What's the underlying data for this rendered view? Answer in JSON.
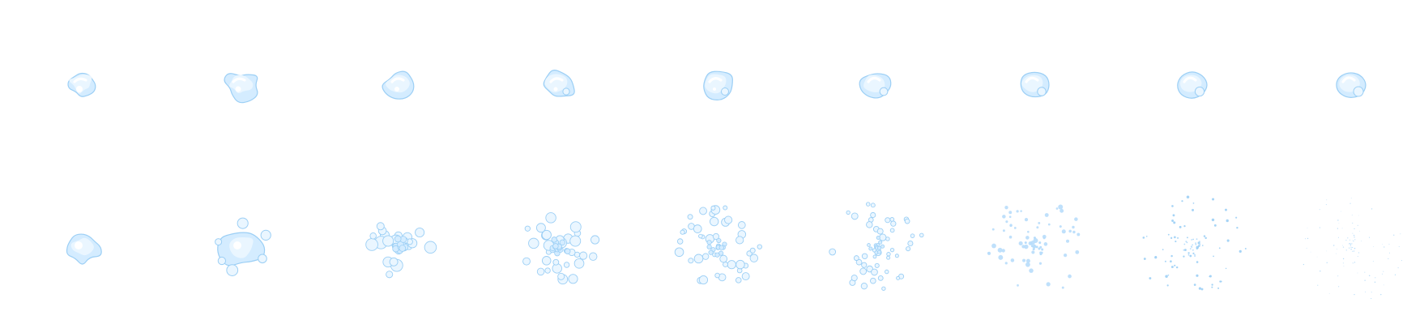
{
  "sprite_sheet": {
    "background": "#ffffff",
    "palette": {
      "highlight": "#ffffff",
      "light": "#eaf6ff",
      "mid": "#d4ecff",
      "deep": "#b8ddfb",
      "edge": "#9ccff5"
    },
    "rows": [
      {
        "name": "bubble-forming",
        "frames": [
          {
            "name": "frame-1",
            "stage": 1
          },
          {
            "name": "frame-2",
            "stage": 2
          },
          {
            "name": "frame-3",
            "stage": 3
          },
          {
            "name": "frame-4",
            "stage": 4
          },
          {
            "name": "frame-5",
            "stage": 5
          },
          {
            "name": "frame-6",
            "stage": 6
          },
          {
            "name": "frame-7",
            "stage": 7
          },
          {
            "name": "frame-8",
            "stage": 8
          },
          {
            "name": "frame-9",
            "stage": 9
          }
        ]
      },
      {
        "name": "bubble-bursting",
        "frames": [
          {
            "name": "frame-1",
            "stage": 1
          },
          {
            "name": "frame-2",
            "stage": 2
          },
          {
            "name": "frame-3",
            "stage": 3
          },
          {
            "name": "frame-4",
            "stage": 4
          },
          {
            "name": "frame-5",
            "stage": 5
          },
          {
            "name": "frame-6",
            "stage": 6
          },
          {
            "name": "frame-7",
            "stage": 7
          },
          {
            "name": "frame-8",
            "stage": 8
          },
          {
            "name": "frame-9",
            "stage": 9
          }
        ]
      }
    ]
  }
}
